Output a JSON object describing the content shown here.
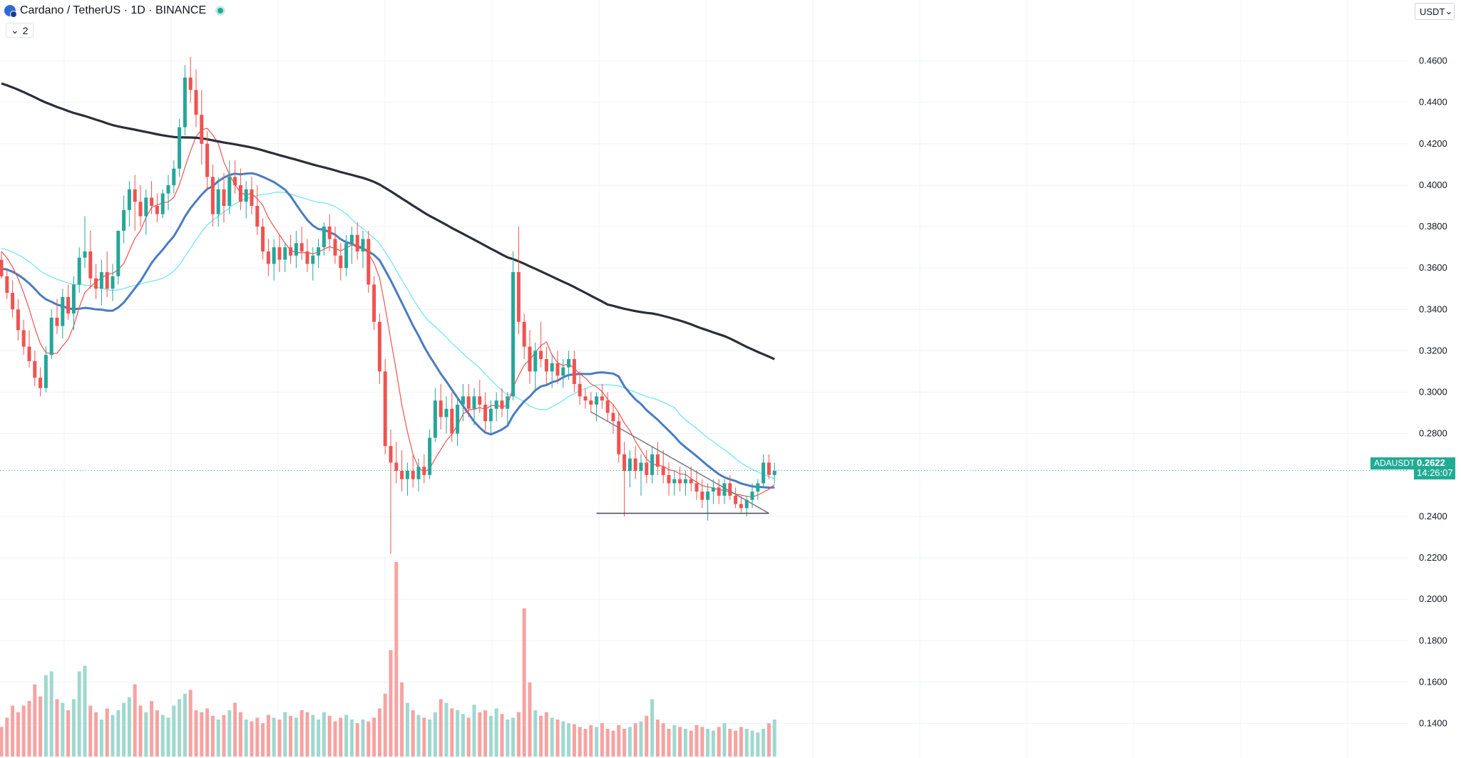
{
  "header": {
    "title": "Cardano / TetherUS · 1D · BINANCE",
    "indicator_count": "2"
  },
  "currency_selector": {
    "value": "USDT"
  },
  "last_price": {
    "symbol": "ADAUSDT",
    "price": "0.2622",
    "countdown": "14:26:07"
  },
  "colors": {
    "up": "#26a69a",
    "down": "#ef5350",
    "volume_up": "#9fd8cf",
    "volume_down": "#f6a3a1",
    "ma_short": "#ef5350",
    "ma_mid": "#4a7cc0",
    "ma_light": "#7ee7ee",
    "ma_long": "#2a2e39",
    "grid": "#f0f3fa"
  },
  "chart_data": {
    "type": "candlestick",
    "symbol": "ADAUSDT",
    "timeframe": "1D",
    "exchange": "BINANCE",
    "y_axis_ticks": [
      "0.4600",
      "0.4400",
      "0.4200",
      "0.4000",
      "0.3800",
      "0.3600",
      "0.3400",
      "0.3200",
      "0.3000",
      "0.2800",
      "0.2400",
      "0.2200",
      "0.2000",
      "0.1800",
      "0.1600",
      "0.1400"
    ],
    "ylim": [
      0.124,
      0.475
    ],
    "last_value": 0.2622,
    "candles": [
      [
        0.364,
        0.368,
        0.355,
        0.356
      ],
      [
        0.356,
        0.36,
        0.345,
        0.348
      ],
      [
        0.348,
        0.354,
        0.336,
        0.34
      ],
      [
        0.34,
        0.345,
        0.325,
        0.33
      ],
      [
        0.33,
        0.335,
        0.318,
        0.322
      ],
      [
        0.322,
        0.33,
        0.312,
        0.315
      ],
      [
        0.315,
        0.32,
        0.303,
        0.307
      ],
      [
        0.307,
        0.312,
        0.298,
        0.302
      ],
      [
        0.302,
        0.322,
        0.3,
        0.318
      ],
      [
        0.318,
        0.34,
        0.316,
        0.336
      ],
      [
        0.336,
        0.345,
        0.328,
        0.332
      ],
      [
        0.332,
        0.35,
        0.326,
        0.346
      ],
      [
        0.346,
        0.352,
        0.335,
        0.338
      ],
      [
        0.338,
        0.356,
        0.33,
        0.352
      ],
      [
        0.352,
        0.37,
        0.348,
        0.365
      ],
      [
        0.365,
        0.385,
        0.36,
        0.368
      ],
      [
        0.368,
        0.378,
        0.35,
        0.355
      ],
      [
        0.355,
        0.362,
        0.345,
        0.35
      ],
      [
        0.35,
        0.364,
        0.342,
        0.358
      ],
      [
        0.358,
        0.368,
        0.346,
        0.35
      ],
      [
        0.35,
        0.362,
        0.344,
        0.356
      ],
      [
        0.356,
        0.375,
        0.352,
        0.378
      ],
      [
        0.378,
        0.395,
        0.372,
        0.388
      ],
      [
        0.388,
        0.402,
        0.38,
        0.398
      ],
      [
        0.398,
        0.405,
        0.378,
        0.392
      ],
      [
        0.392,
        0.4,
        0.38,
        0.385
      ],
      [
        0.385,
        0.398,
        0.376,
        0.394
      ],
      [
        0.394,
        0.402,
        0.386,
        0.39
      ],
      [
        0.39,
        0.396,
        0.382,
        0.386
      ],
      [
        0.386,
        0.398,
        0.384,
        0.396
      ],
      [
        0.396,
        0.405,
        0.388,
        0.4
      ],
      [
        0.4,
        0.412,
        0.396,
        0.408
      ],
      [
        0.408,
        0.432,
        0.404,
        0.428
      ],
      [
        0.428,
        0.458,
        0.424,
        0.452
      ],
      [
        0.452,
        0.462,
        0.44,
        0.446
      ],
      [
        0.446,
        0.456,
        0.428,
        0.434
      ],
      [
        0.434,
        0.446,
        0.41,
        0.42
      ],
      [
        0.42,
        0.426,
        0.398,
        0.404
      ],
      [
        0.404,
        0.41,
        0.38,
        0.386
      ],
      [
        0.386,
        0.404,
        0.38,
        0.398
      ],
      [
        0.398,
        0.406,
        0.382,
        0.39
      ],
      [
        0.39,
        0.412,
        0.386,
        0.404
      ],
      [
        0.404,
        0.412,
        0.396,
        0.4
      ],
      [
        0.4,
        0.408,
        0.388,
        0.392
      ],
      [
        0.392,
        0.402,
        0.384,
        0.398
      ],
      [
        0.398,
        0.404,
        0.386,
        0.39
      ],
      [
        0.39,
        0.4,
        0.376,
        0.38
      ],
      [
        0.38,
        0.384,
        0.364,
        0.368
      ],
      [
        0.368,
        0.374,
        0.356,
        0.362
      ],
      [
        0.362,
        0.374,
        0.354,
        0.37
      ],
      [
        0.37,
        0.376,
        0.358,
        0.364
      ],
      [
        0.364,
        0.372,
        0.358,
        0.37
      ],
      [
        0.37,
        0.376,
        0.362,
        0.366
      ],
      [
        0.366,
        0.378,
        0.36,
        0.372
      ],
      [
        0.372,
        0.38,
        0.364,
        0.368
      ],
      [
        0.368,
        0.374,
        0.358,
        0.362
      ],
      [
        0.362,
        0.37,
        0.354,
        0.366
      ],
      [
        0.366,
        0.374,
        0.36,
        0.37
      ],
      [
        0.37,
        0.382,
        0.366,
        0.38
      ],
      [
        0.38,
        0.386,
        0.368,
        0.374
      ],
      [
        0.374,
        0.38,
        0.362,
        0.366
      ],
      [
        0.366,
        0.372,
        0.354,
        0.36
      ],
      [
        0.36,
        0.376,
        0.356,
        0.372
      ],
      [
        0.372,
        0.38,
        0.362,
        0.376
      ],
      [
        0.376,
        0.382,
        0.364,
        0.368
      ],
      [
        0.368,
        0.378,
        0.36,
        0.374
      ],
      [
        0.374,
        0.378,
        0.348,
        0.352
      ],
      [
        0.352,
        0.356,
        0.33,
        0.334
      ],
      [
        0.334,
        0.338,
        0.304,
        0.31
      ],
      [
        0.31,
        0.316,
        0.27,
        0.274
      ],
      [
        0.274,
        0.282,
        0.222,
        0.266
      ],
      [
        0.266,
        0.276,
        0.256,
        0.262
      ],
      [
        0.262,
        0.272,
        0.252,
        0.258
      ],
      [
        0.258,
        0.266,
        0.25,
        0.262
      ],
      [
        0.262,
        0.27,
        0.254,
        0.258
      ],
      [
        0.258,
        0.268,
        0.252,
        0.264
      ],
      [
        0.264,
        0.27,
        0.256,
        0.26
      ],
      [
        0.26,
        0.282,
        0.258,
        0.278
      ],
      [
        0.278,
        0.302,
        0.276,
        0.296
      ],
      [
        0.296,
        0.304,
        0.282,
        0.288
      ],
      [
        0.288,
        0.298,
        0.28,
        0.292
      ],
      [
        0.292,
        0.3,
        0.276,
        0.28
      ],
      [
        0.28,
        0.298,
        0.274,
        0.294
      ],
      [
        0.294,
        0.304,
        0.286,
        0.298
      ],
      [
        0.298,
        0.304,
        0.288,
        0.292
      ],
      [
        0.292,
        0.302,
        0.284,
        0.298
      ],
      [
        0.298,
        0.306,
        0.29,
        0.294
      ],
      [
        0.294,
        0.3,
        0.28,
        0.286
      ],
      [
        0.286,
        0.296,
        0.28,
        0.292
      ],
      [
        0.292,
        0.3,
        0.286,
        0.296
      ],
      [
        0.296,
        0.302,
        0.288,
        0.292
      ],
      [
        0.292,
        0.3,
        0.284,
        0.298
      ],
      [
        0.298,
        0.368,
        0.296,
        0.358
      ],
      [
        0.358,
        0.38,
        0.328,
        0.334
      ],
      [
        0.334,
        0.338,
        0.316,
        0.322
      ],
      [
        0.322,
        0.33,
        0.304,
        0.31
      ],
      [
        0.31,
        0.324,
        0.3,
        0.32
      ],
      [
        0.32,
        0.334,
        0.312,
        0.316
      ],
      [
        0.316,
        0.322,
        0.304,
        0.31
      ],
      [
        0.31,
        0.318,
        0.302,
        0.314
      ],
      [
        0.314,
        0.32,
        0.304,
        0.308
      ],
      [
        0.308,
        0.316,
        0.302,
        0.312
      ],
      [
        0.312,
        0.32,
        0.306,
        0.316
      ],
      [
        0.316,
        0.32,
        0.3,
        0.304
      ],
      [
        0.304,
        0.31,
        0.294,
        0.298
      ],
      [
        0.298,
        0.302,
        0.292,
        0.296
      ],
      [
        0.296,
        0.3,
        0.29,
        0.294
      ],
      [
        0.294,
        0.3,
        0.286,
        0.298
      ],
      [
        0.298,
        0.304,
        0.292,
        0.296
      ],
      [
        0.296,
        0.3,
        0.286,
        0.29
      ],
      [
        0.29,
        0.294,
        0.28,
        0.286
      ],
      [
        0.286,
        0.29,
        0.266,
        0.27
      ],
      [
        0.27,
        0.276,
        0.24,
        0.262
      ],
      [
        0.262,
        0.272,
        0.254,
        0.268
      ],
      [
        0.268,
        0.274,
        0.258,
        0.262
      ],
      [
        0.262,
        0.27,
        0.25,
        0.266
      ],
      [
        0.266,
        0.272,
        0.256,
        0.26
      ],
      [
        0.26,
        0.274,
        0.256,
        0.27
      ],
      [
        0.27,
        0.276,
        0.26,
        0.264
      ],
      [
        0.264,
        0.272,
        0.256,
        0.26
      ],
      [
        0.26,
        0.266,
        0.25,
        0.256
      ],
      [
        0.256,
        0.262,
        0.25,
        0.258
      ],
      [
        0.258,
        0.264,
        0.252,
        0.256
      ],
      [
        0.256,
        0.262,
        0.25,
        0.258
      ],
      [
        0.258,
        0.264,
        0.252,
        0.256
      ],
      [
        0.256,
        0.262,
        0.248,
        0.252
      ],
      [
        0.252,
        0.258,
        0.244,
        0.248
      ],
      [
        0.248,
        0.256,
        0.238,
        0.252
      ],
      [
        0.252,
        0.258,
        0.246,
        0.254
      ],
      [
        0.254,
        0.258,
        0.246,
        0.25
      ],
      [
        0.25,
        0.258,
        0.246,
        0.256
      ],
      [
        0.256,
        0.26,
        0.248,
        0.25
      ],
      [
        0.25,
        0.254,
        0.244,
        0.246
      ],
      [
        0.246,
        0.25,
        0.242,
        0.244
      ],
      [
        0.244,
        0.25,
        0.24,
        0.248
      ],
      [
        0.248,
        0.256,
        0.244,
        0.252
      ],
      [
        0.252,
        0.258,
        0.248,
        0.256
      ],
      [
        0.256,
        0.27,
        0.254,
        0.266
      ],
      [
        0.266,
        0.27,
        0.258,
        0.26
      ],
      [
        0.26,
        0.266,
        0.256,
        0.262
      ]
    ],
    "volumes": [
      0.32,
      0.42,
      0.55,
      0.48,
      0.55,
      0.6,
      0.78,
      0.65,
      0.88,
      0.92,
      0.62,
      0.58,
      0.5,
      0.62,
      0.92,
      0.98,
      0.55,
      0.48,
      0.4,
      0.52,
      0.45,
      0.5,
      0.58,
      0.64,
      0.78,
      0.55,
      0.48,
      0.6,
      0.5,
      0.45,
      0.42,
      0.55,
      0.62,
      0.68,
      0.72,
      0.5,
      0.48,
      0.52,
      0.44,
      0.4,
      0.45,
      0.5,
      0.58,
      0.48,
      0.4,
      0.38,
      0.42,
      0.36,
      0.45,
      0.42,
      0.4,
      0.48,
      0.44,
      0.42,
      0.5,
      0.48,
      0.45,
      0.4,
      0.48,
      0.44,
      0.38,
      0.42,
      0.45,
      0.4,
      0.36,
      0.4,
      0.38,
      0.42,
      0.52,
      0.68,
      1.15,
      2.1,
      0.8,
      0.58,
      0.5,
      0.45,
      0.42,
      0.4,
      0.48,
      0.62,
      0.58,
      0.52,
      0.5,
      0.46,
      0.42,
      0.56,
      0.48,
      0.5,
      0.44,
      0.52,
      0.46,
      0.4,
      0.42,
      0.48,
      1.6,
      0.8,
      0.5,
      0.44,
      0.48,
      0.42,
      0.4,
      0.38,
      0.36,
      0.35,
      0.32,
      0.3,
      0.34,
      0.32,
      0.36,
      0.3,
      0.28,
      0.34,
      0.3,
      0.32,
      0.36,
      0.38,
      0.44,
      0.62,
      0.4,
      0.36,
      0.3,
      0.34,
      0.32,
      0.3,
      0.28,
      0.34,
      0.32,
      0.3,
      0.28,
      0.32,
      0.36,
      0.3,
      0.28,
      0.32,
      0.3,
      0.28,
      0.26,
      0.3,
      0.36,
      0.4
    ],
    "moving_averages": [
      {
        "color": "ma_short",
        "values_note": "fast MA"
      },
      {
        "color": "ma_mid",
        "values_note": "mid MA"
      },
      {
        "color": "ma_light",
        "values_note": "mid MA light"
      },
      {
        "color": "ma_long",
        "values_note": "slow MA"
      }
    ],
    "trendlines": [
      {
        "from": [
          0.282,
          "descending upper"
        ],
        "to": [
          0.242,
          "apex"
        ]
      },
      {
        "level": 0.2415,
        "type": "horizontal support"
      }
    ]
  }
}
